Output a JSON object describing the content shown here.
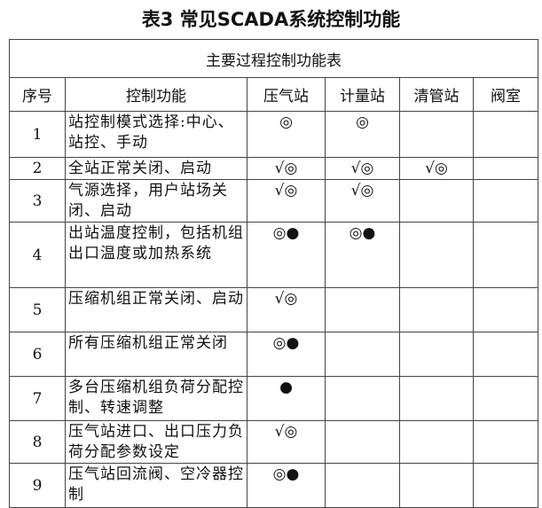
{
  "title": "表3  常见SCADA系统控制功能",
  "caption": "主要过程控制功能表",
  "headers": [
    "序号",
    "控制功能",
    "压气站",
    "计量站",
    "清管站",
    "阀室"
  ],
  "rows": [
    {
      "no": "1",
      "func": " 站控制模式选择:中心、站控、手动",
      "c": [
        "◎",
        "◎",
        "",
        ""
      ]
    },
    {
      "no": "2",
      "func": "全站正常关闭、启动",
      "c": [
        "√◎",
        "√◎",
        "√◎",
        ""
      ]
    },
    {
      "no": "3",
      "func": "气源选择，用户站场关闭、启动",
      "c": [
        "√◎",
        "√◎",
        "",
        ""
      ]
    },
    {
      "no": "4",
      "func": "出站温度控制，包括机组出口温度或加热系统",
      "c": [
        "◎●",
        "◎●",
        "",
        ""
      ]
    },
    {
      "no": "5",
      "func": "压缩机组正常关闭、启动",
      "c": [
        "√◎",
        "",
        "",
        ""
      ]
    },
    {
      "no": "6",
      "func": "所有压缩机组正常关闭",
      "c": [
        "◎●",
        "",
        "",
        ""
      ]
    },
    {
      "no": "7",
      "func": "多台压缩机组负荷分配控制、转速调整",
      "c": [
        "●",
        "",
        "",
        ""
      ]
    },
    {
      "no": "8",
      "func": "压气站进口、出口压力负荷分配参数设定",
      "c": [
        "√◎",
        "",
        "",
        ""
      ]
    },
    {
      "no": "9",
      "func": "压气站回流阀、空冷器控制",
      "c": [
        "◎●",
        "",
        "",
        ""
      ]
    }
  ]
}
